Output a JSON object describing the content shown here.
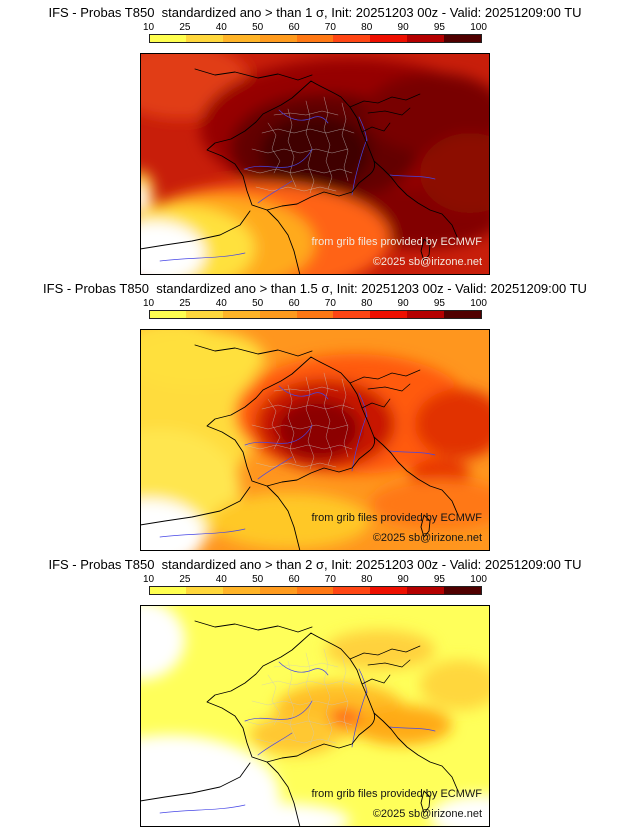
{
  "colorbar": {
    "ticks": [
      "10",
      "25",
      "40",
      "50",
      "60",
      "70",
      "80",
      "90",
      "95",
      "100"
    ],
    "colors": [
      "#ffff50",
      "#ffd73c",
      "#ffb428",
      "#ff9b1e",
      "#ff7814",
      "#ff4614",
      "#ee0f00",
      "#b40000",
      "#500000"
    ]
  },
  "watermark": {
    "line1": "from grib files provided by ECMWF",
    "line2": "©2025 sb@irizone.net"
  },
  "panels": [
    {
      "sigma": "1",
      "title": "IFS - Probas T850  standardized ano > than 1 σ, Init: 20251203 00z - Valid: 20251209:00 TU"
    },
    {
      "sigma": "1.5",
      "title": "IFS - Probas T850  standardized ano > than 1.5 σ, Init: 20251203 00z - Valid: 20251209:00 TU"
    },
    {
      "sigma": "2",
      "title": "IFS - Probas T850  standardized ano > than 2 σ, Init: 20251203 00z - Valid: 20251209:00 TU"
    }
  ]
}
